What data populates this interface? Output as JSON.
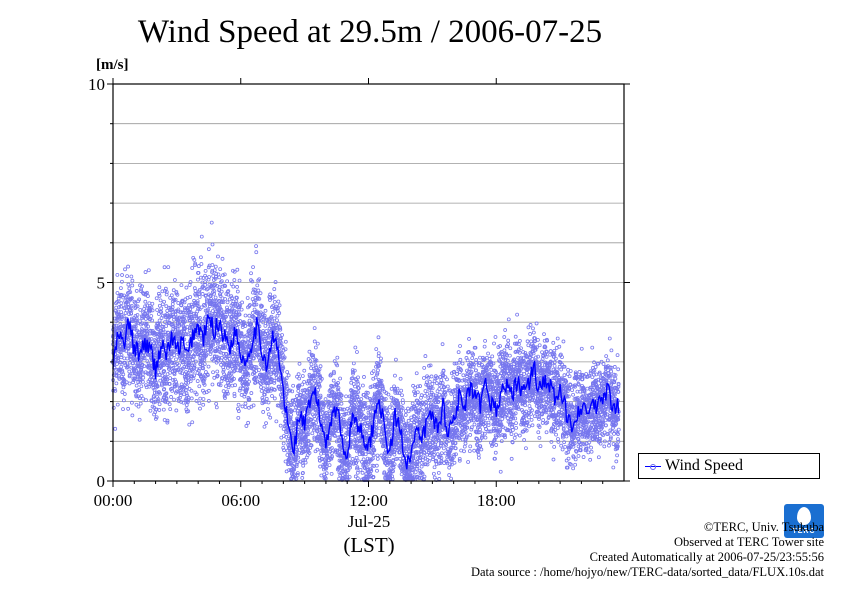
{
  "chart_data": {
    "type": "scatter",
    "title": "Wind Speed at 29.5m / 2006-07-25",
    "ylabel": "[m/s]",
    "xlabel": "(LST)",
    "date_label": "Jul-25",
    "ylim": [
      0,
      10
    ],
    "xlim_hours": [
      0,
      24
    ],
    "y_ticks": [
      "0",
      "5",
      "10"
    ],
    "x_ticks": [
      {
        "hour": 0,
        "label": "00:00"
      },
      {
        "hour": 6,
        "label": "06:00"
      },
      {
        "hour": 12,
        "label": "12:00"
      },
      {
        "hour": 18,
        "label": "18:00"
      }
    ],
    "grid": "horizontal",
    "legend_position": "right",
    "series": [
      {
        "name": "Wind Speed",
        "color": "#0000ff",
        "scatter_color": "#7777ee",
        "mean_x_hours": [
          0.0,
          0.25,
          0.5,
          0.75,
          1.0,
          1.25,
          1.5,
          1.75,
          2.0,
          2.25,
          2.5,
          2.75,
          3.0,
          3.25,
          3.5,
          3.75,
          4.0,
          4.25,
          4.5,
          4.75,
          5.0,
          5.25,
          5.5,
          5.75,
          6.0,
          6.25,
          6.5,
          6.75,
          7.0,
          7.25,
          7.5,
          7.75,
          8.0,
          8.25,
          8.5,
          8.75,
          9.0,
          9.25,
          9.5,
          9.75,
          10.0,
          10.25,
          10.5,
          10.75,
          11.0,
          11.25,
          11.5,
          11.75,
          12.0,
          12.25,
          12.5,
          12.75,
          13.0,
          13.25,
          13.5,
          13.75,
          14.0,
          14.25,
          14.5,
          14.75,
          15.0,
          15.25,
          15.5,
          15.75,
          16.0,
          16.25,
          16.5,
          16.75,
          17.0,
          17.25,
          17.5,
          17.75,
          18.0,
          18.25,
          18.5,
          18.75,
          19.0,
          19.25,
          19.5,
          19.75,
          20.0,
          20.25,
          20.5,
          20.75,
          21.0,
          21.25,
          21.5,
          21.75,
          22.0,
          22.25,
          22.5,
          22.75,
          23.0,
          23.25,
          23.5,
          23.75
        ],
        "mean_values": [
          2.9,
          3.7,
          3.4,
          4.0,
          3.3,
          3.2,
          3.5,
          3.3,
          2.8,
          3.4,
          3.2,
          3.6,
          3.3,
          3.5,
          3.1,
          3.7,
          3.9,
          3.6,
          4.1,
          3.8,
          4.0,
          3.6,
          3.4,
          3.8,
          3.2,
          3.0,
          3.5,
          3.9,
          3.3,
          2.9,
          3.6,
          3.3,
          2.2,
          1.3,
          0.8,
          1.7,
          1.4,
          1.9,
          2.3,
          1.5,
          1.0,
          1.6,
          1.9,
          1.1,
          0.6,
          1.7,
          1.4,
          1.2,
          0.8,
          1.5,
          2.2,
          1.2,
          0.7,
          1.6,
          1.3,
          0.5,
          0.7,
          1.2,
          1.0,
          1.5,
          1.7,
          1.3,
          1.9,
          1.2,
          1.6,
          2.1,
          1.8,
          2.3,
          2.1,
          1.9,
          2.4,
          2.0,
          1.8,
          2.2,
          2.5,
          2.1,
          2.6,
          2.2,
          2.4,
          2.9,
          2.3,
          2.6,
          2.4,
          2.1,
          2.2,
          1.8,
          1.4,
          1.7,
          1.9,
          1.6,
          2.0,
          1.8,
          2.1,
          2.3,
          1.7,
          1.9
        ],
        "scatter_spread": [
          1.2,
          1.2,
          1.2,
          1.2,
          1.2,
          1.2,
          1.2,
          1.2,
          1.2,
          1.2,
          1.2,
          1.2,
          1.3,
          1.3,
          1.3,
          1.3,
          1.4,
          1.4,
          1.4,
          1.4,
          1.3,
          1.3,
          1.3,
          1.3,
          1.2,
          1.2,
          1.2,
          1.2,
          1.2,
          1.2,
          1.2,
          1.2,
          1.1,
          1.0,
          1.0,
          1.0,
          1.0,
          1.1,
          1.1,
          1.0,
          1.0,
          1.0,
          1.0,
          1.0,
          1.0,
          1.1,
          1.2,
          1.2,
          1.2,
          1.1,
          1.1,
          1.1,
          1.0,
          1.0,
          1.0,
          1.0,
          1.0,
          1.0,
          1.0,
          1.0,
          1.0,
          1.0,
          1.0,
          1.0,
          1.0,
          1.0,
          1.0,
          1.0,
          1.0,
          1.0,
          1.0,
          1.0,
          1.0,
          1.0,
          1.0,
          1.0,
          1.0,
          1.0,
          1.0,
          1.0,
          0.9,
          0.9,
          0.9,
          0.9,
          0.9,
          0.9,
          0.9,
          0.9,
          0.9,
          0.9,
          0.9,
          0.9,
          0.9,
          0.9,
          0.9,
          0.9
        ]
      }
    ]
  },
  "legend": {
    "label": "Wind Speed"
  },
  "footer": {
    "line1": "©TERC, Univ. Tsukuba",
    "line2": "Observed at TERC Tower site",
    "line3": "Created Automatically at 2006-07-25/23:55:56",
    "line4": "Data source : /home/hojyo/new/TERC-data/sorted_data/FLUX.10s.dat"
  },
  "logo": {
    "text": "TERC"
  }
}
